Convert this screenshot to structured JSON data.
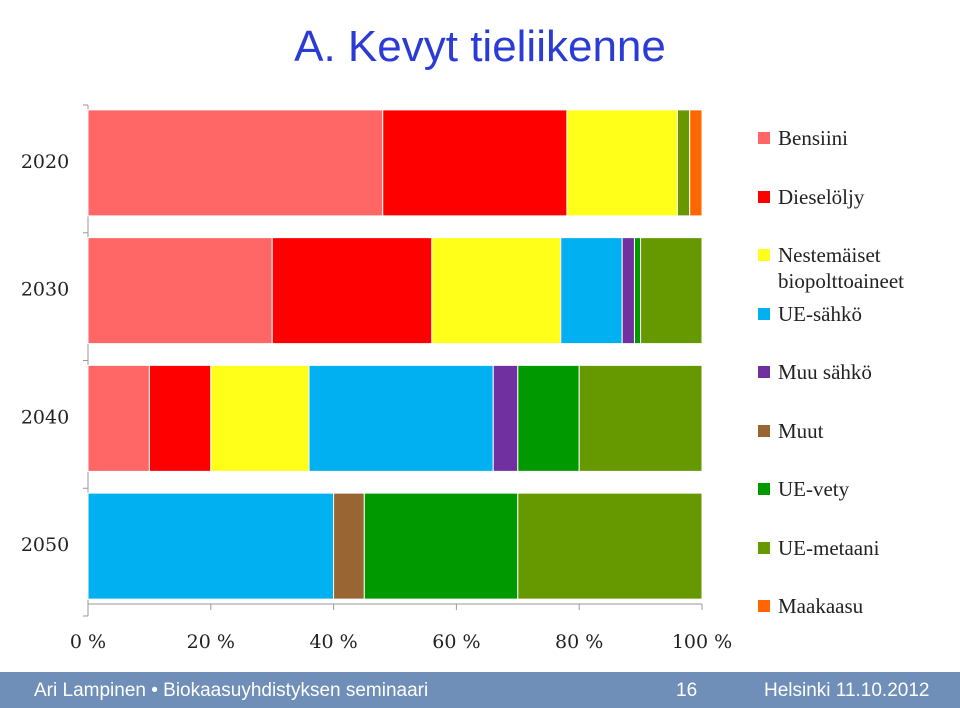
{
  "chart_data": {
    "type": "stacked-barh",
    "title": "A. Kevyt tieliikenne",
    "categories": [
      "2020",
      "2030",
      "2040",
      "2050"
    ],
    "series": [
      {
        "name": "Bensiini",
        "color": "#ff6666",
        "values": [
          48,
          30,
          10,
          0
        ]
      },
      {
        "name": "Dieselöljy",
        "color": "#ff0000",
        "values": [
          30,
          26,
          10,
          0
        ]
      },
      {
        "name": "Nestemäiset biopolttoaineet",
        "color": "#ffff1a",
        "values": [
          18,
          21,
          16,
          0
        ]
      },
      {
        "name": "UE-sähkö",
        "color": "#00b0f0",
        "values": [
          0,
          10,
          30,
          40
        ]
      },
      {
        "name": "Muu sähkö",
        "color": "#7030a0",
        "values": [
          0,
          2,
          4,
          0
        ]
      },
      {
        "name": "Muut",
        "color": "#996633",
        "values": [
          0,
          0,
          0,
          5
        ]
      },
      {
        "name": "UE-vety",
        "color": "#009900",
        "values": [
          0,
          1,
          10,
          25
        ]
      },
      {
        "name": "UE-metaani",
        "color": "#669900",
        "values": [
          2,
          10,
          20,
          30
        ]
      },
      {
        "name": "Maakaasu",
        "color": "#ff6600",
        "values": [
          2,
          0,
          0,
          0
        ]
      }
    ],
    "xlim": [
      0,
      100
    ],
    "xticks": [
      {
        "value": 0,
        "label": "0 %"
      },
      {
        "value": 20,
        "label": "20 %"
      },
      {
        "value": 40,
        "label": "40 %"
      },
      {
        "value": 60,
        "label": "60 %"
      },
      {
        "value": 80,
        "label": "80 %"
      },
      {
        "value": 100,
        "label": "100 %"
      }
    ],
    "legend": "right"
  },
  "footer": {
    "left": "Ari Lampinen • Biokaasuyhdistyksen seminaari",
    "page": "16",
    "right": "Helsinki 11.10.2012"
  }
}
